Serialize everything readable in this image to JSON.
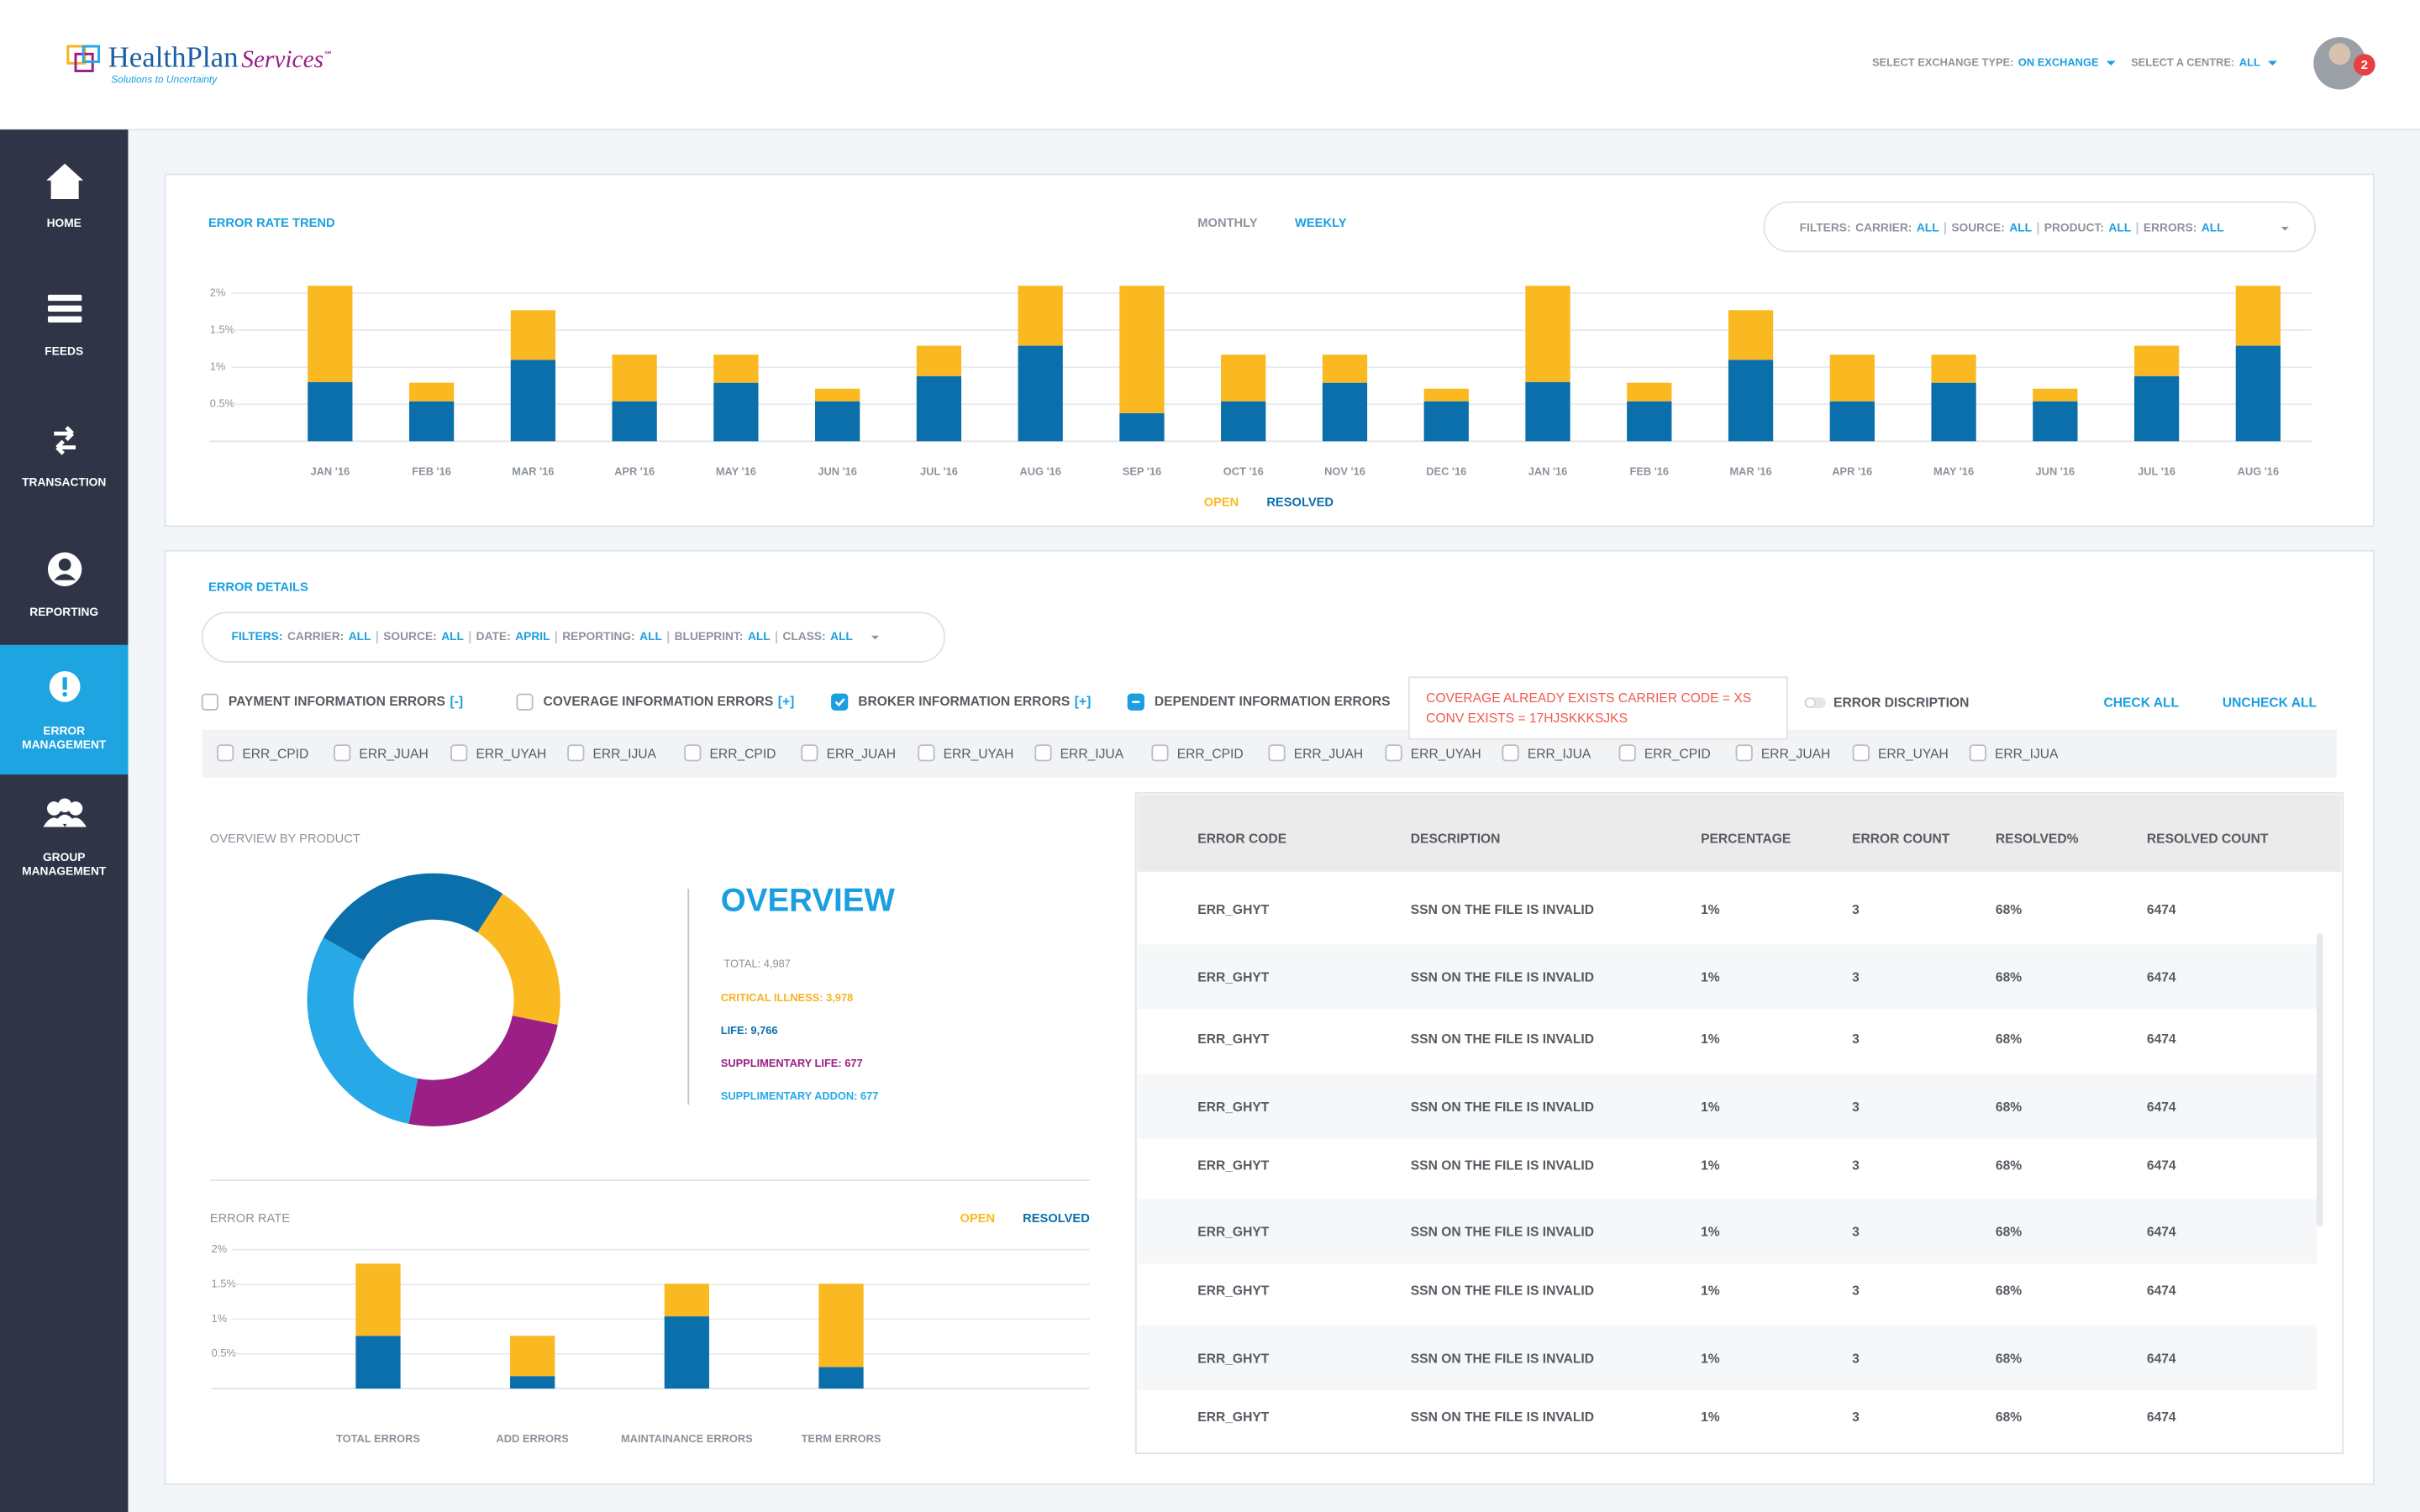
{
  "header": {
    "logo": "HealthPlan",
    "logo_accent": "Services",
    "logo_mark": "℠",
    "tagline": "Solutions to Uncertainty",
    "selectors": [
      {
        "label": "SELECT EXCHANGE TYPE:",
        "value": "ON EXCHANGE"
      },
      {
        "label": "SELECT A CENTRE:",
        "value": "ALL"
      }
    ],
    "notifications": "2"
  },
  "sidebar": {
    "active": 4,
    "items": [
      {
        "icon": "home",
        "label": [
          "HOME"
        ]
      },
      {
        "icon": "feeds",
        "label": [
          "FEEDS"
        ]
      },
      {
        "icon": "transaction",
        "label": [
          "TRANSACTION"
        ]
      },
      {
        "icon": "reporting",
        "label": [
          "REPORTING"
        ]
      },
      {
        "icon": "alert",
        "label": [
          "ERROR",
          "MANAGEMENT"
        ]
      },
      {
        "icon": "group",
        "label": [
          "GROUP",
          "MANAGEMENT"
        ]
      }
    ]
  },
  "trend": {
    "tabs": [
      "MONTHLY",
      "WEEKLY"
    ],
    "active_tab": 1,
    "filters": {
      "prefix": "FILTERS:",
      "items": [
        {
          "label": "CARRIER:",
          "value": "ALL"
        },
        {
          "label": "SOURCE:",
          "value": "ALL"
        },
        {
          "label": "PRODUCT:",
          "value": "ALL"
        },
        {
          "label": "ERRORS:",
          "value": "ALL"
        }
      ]
    }
  },
  "details": {
    "title": "ERROR DETAILS",
    "filters": {
      "prefix": "FILTERS:",
      "items": [
        {
          "label": "CARRIER:",
          "value": "ALL"
        },
        {
          "label": "SOURCE:",
          "value": "ALL"
        },
        {
          "label": "DATE:",
          "value": "APRIL"
        },
        {
          "label": "REPORTING:",
          "value": "ALL"
        },
        {
          "label": "BLUEPRINT:",
          "value": "ALL"
        },
        {
          "label": "CLASS:",
          "value": "ALL"
        }
      ]
    },
    "groups": [
      {
        "label": "PAYMENT INFORMATION ERRORS",
        "toggle": "[-]",
        "state": "unchecked"
      },
      {
        "label": "COVERAGE INFORMATION ERRORS",
        "toggle": "[+]",
        "state": "unchecked"
      },
      {
        "label": "BROKER INFORMATION ERRORS",
        "toggle": "[+]",
        "state": "checked"
      },
      {
        "label": "DEPENDENT INFORMATION ERRORS",
        "state": "partial"
      }
    ],
    "tooltip": [
      "COVERAGE ALREADY EXISTS CARRIER CODE = XS",
      "CONV EXISTS = 17HJSKKKSJKS"
    ],
    "switch_label": "ERROR DISCRIPTION",
    "actions": [
      "CHECK ALL",
      "UNCHECK ALL"
    ],
    "codes": [
      "ERR_CPID",
      "ERR_JUAH",
      "ERR_UYAH",
      "ERR_IJUA",
      "ERR_CPID",
      "ERR_JUAH",
      "ERR_UYAH",
      "ERR_IJUA",
      "ERR_CPID",
      "ERR_JUAH",
      "ERR_UYAH",
      "ERR_IJUA",
      "ERR_CPID",
      "ERR_JUAH",
      "ERR_UYAH",
      "ERR_IJUA"
    ]
  },
  "overview": {
    "heading": "OVERVIEW",
    "total": "TOTAL: 4,987",
    "items": [
      {
        "text": "CRITICAL ILLNESS: 3,978",
        "color": "#f7b321"
      },
      {
        "text": "LIFE: 9,766",
        "color": "#0a6fab"
      },
      {
        "text": "SUPPLIMENTARY LIFE: 677",
        "color": "#9b1f85"
      },
      {
        "text": "SUPPLIMENTARY ADDON: 677",
        "color": "#27a9e8"
      }
    ]
  },
  "table": {
    "columns": [
      "ERROR CODE",
      "DESCRIPTION",
      "PERCENTAGE",
      "ERROR COUNT",
      "RESOLVED%",
      "RESOLVED COUNT"
    ],
    "rows": [
      [
        "ERR_GHYT",
        "SSN ON THE FILE IS INVALID",
        "1%",
        "3",
        "68%",
        "6474"
      ],
      [
        "ERR_GHYT",
        "SSN ON THE FILE IS INVALID",
        "1%",
        "3",
        "68%",
        "6474"
      ],
      [
        "ERR_GHYT",
        "SSN ON THE FILE IS INVALID",
        "1%",
        "3",
        "68%",
        "6474"
      ],
      [
        "ERR_GHYT",
        "SSN ON THE FILE IS INVALID",
        "1%",
        "3",
        "68%",
        "6474"
      ],
      [
        "ERR_GHYT",
        "SSN ON THE FILE IS INVALID",
        "1%",
        "3",
        "68%",
        "6474"
      ],
      [
        "ERR_GHYT",
        "SSN ON THE FILE IS INVALID",
        "1%",
        "3",
        "68%",
        "6474"
      ],
      [
        "ERR_GHYT",
        "SSN ON THE FILE IS INVALID",
        "1%",
        "3",
        "68%",
        "6474"
      ],
      [
        "ERR_GHYT",
        "SSN ON THE FILE IS INVALID",
        "1%",
        "3",
        "68%",
        "6474"
      ],
      [
        "ERR_GHYT",
        "SSN ON THE FILE IS INVALID",
        "1%",
        "3",
        "68%",
        "6474"
      ]
    ]
  },
  "chart_data": [
    {
      "type": "bar",
      "stacked": true,
      "title": "ERROR RATE TREND",
      "categories": [
        "JAN '16",
        "FEB '16",
        "MAR '16",
        "APR '16",
        "MAY '16",
        "JUN '16",
        "JUL '16",
        "AUG '16",
        "SEP '16",
        "OCT '16",
        "NOV '16",
        "DEC '16",
        "JAN '16",
        "FEB '16",
        "MAR '16",
        "APR '16",
        "MAY '16",
        "JUN '16",
        "JUL '16",
        "AUG '16"
      ],
      "series": [
        {
          "name": "OPEN",
          "color": "#fbb921",
          "values": [
            1.3,
            0.25,
            0.67,
            0.63,
            0.38,
            0.17,
            0.41,
            0.81,
            1.72,
            0.63,
            0.38,
            0.17,
            1.3,
            0.25,
            0.67,
            0.63,
            0.38,
            0.17,
            0.41,
            0.81
          ]
        },
        {
          "name": "RESOLVED",
          "color": "#0a6fab",
          "values": [
            0.8,
            0.54,
            1.1,
            0.54,
            0.79,
            0.54,
            0.88,
            1.29,
            0.38,
            0.54,
            0.79,
            0.54,
            0.8,
            0.54,
            1.1,
            0.54,
            0.79,
            0.54,
            0.88,
            1.29
          ]
        }
      ],
      "ylim": [
        0,
        2.1
      ],
      "yticks": [
        {
          "value": 0.5,
          "label": "0.5%"
        },
        {
          "value": 1,
          "label": "1%"
        },
        {
          "value": 1.5,
          "label": "1.5%"
        },
        {
          "value": 2,
          "label": "2%"
        }
      ],
      "grid": true
    },
    {
      "type": "bar",
      "stacked": true,
      "title": "ERROR RATE",
      "categories": [
        "TOTAL ERRORS",
        "ADD ERRORS",
        "MAINTAINANCE ERRORS",
        "TERM ERRORS"
      ],
      "series": [
        {
          "name": "OPEN",
          "color": "#fbb921",
          "values": [
            1.04,
            0.58,
            0.47,
            1.2
          ]
        },
        {
          "name": "RESOLVED",
          "color": "#0a6fab",
          "values": [
            0.76,
            0.18,
            1.04,
            0.31
          ]
        }
      ],
      "ylim": [
        0,
        2.2
      ],
      "yticks": [
        {
          "value": 0.5,
          "label": "0.5%"
        },
        {
          "value": 1,
          "label": "1%"
        },
        {
          "value": 1.5,
          "label": "1.5%"
        },
        {
          "value": 2,
          "label": "2%"
        }
      ],
      "grid": true
    },
    {
      "type": "pie",
      "donut": true,
      "title": "OVERVIEW BY PRODUCT",
      "values": [
        19,
        25,
        30,
        26
      ],
      "colors": [
        "#fbb921",
        "#9b1f85",
        "#27a9e8",
        "#0a6fab"
      ]
    }
  ]
}
